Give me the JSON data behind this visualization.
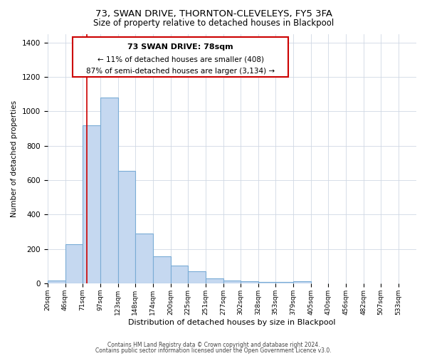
{
  "title": "73, SWAN DRIVE, THORNTON-CLEVELEYS, FY5 3FA",
  "subtitle": "Size of property relative to detached houses in Blackpool",
  "xlabel": "Distribution of detached houses by size in Blackpool",
  "ylabel": "Number of detached properties",
  "bar_values": [
    15,
    228,
    920,
    1080,
    655,
    290,
    157,
    105,
    68,
    27,
    18,
    12,
    10,
    6,
    12
  ],
  "bar_color": "#c5d8f0",
  "bar_edge_color": "#7aacd6",
  "ylim": [
    0,
    1450
  ],
  "vline_x": 78,
  "bin_edges": [
    20,
    46,
    71,
    97,
    123,
    148,
    174,
    200,
    225,
    251,
    277,
    302,
    328,
    353,
    379,
    405,
    430,
    456,
    482,
    507,
    533,
    559
  ],
  "tick_labels": [
    "20sqm",
    "46sqm",
    "71sqm",
    "97sqm",
    "123sqm",
    "148sqm",
    "174sqm",
    "200sqm",
    "225sqm",
    "251sqm",
    "277sqm",
    "302sqm",
    "328sqm",
    "353sqm",
    "379sqm",
    "405sqm",
    "430sqm",
    "456sqm",
    "482sqm",
    "507sqm",
    "533sqm"
  ],
  "annotation_title": "73 SWAN DRIVE: 78sqm",
  "annotation_line1": "← 11% of detached houses are smaller (408)",
  "annotation_line2": "87% of semi-detached houses are larger (3,134) →",
  "annotation_box_color": "#ffffff",
  "annotation_box_edge": "#cc0000",
  "vline_color": "#cc0000",
  "footer1": "Contains HM Land Registry data © Crown copyright and database right 2024.",
  "footer2": "Contains public sector information licensed under the Open Government Licence v3.0.",
  "background_color": "#ffffff",
  "grid_color": "#d0d8e4"
}
